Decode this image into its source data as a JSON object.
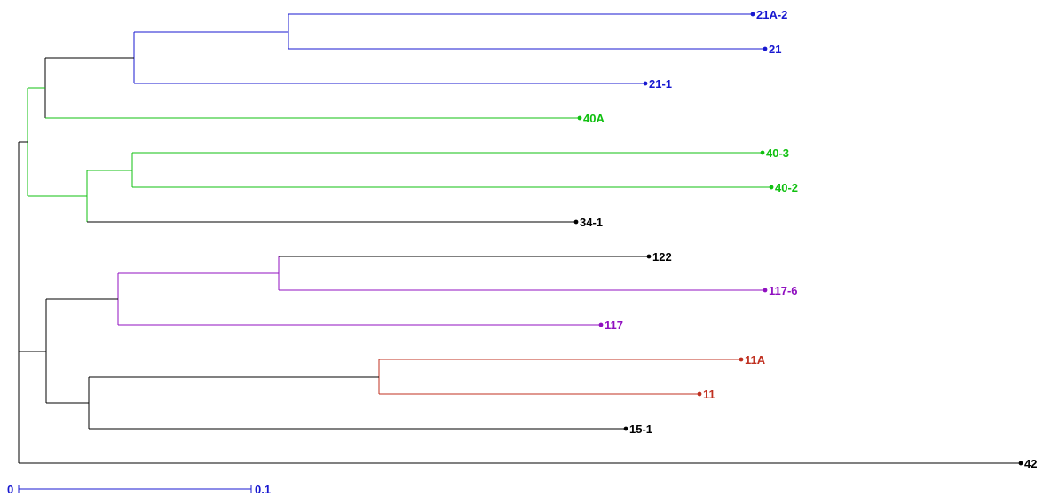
{
  "colors": {
    "blue": "#1818d0",
    "green": "#10c010",
    "purple": "#9010c0",
    "red": "#c03020",
    "black": "#000000",
    "scale": "#1818d0"
  },
  "leaves": [
    {
      "label": "21A-2",
      "color": "blue"
    },
    {
      "label": "21",
      "color": "blue"
    },
    {
      "label": "21-1",
      "color": "blue"
    },
    {
      "label": "40A",
      "color": "green"
    },
    {
      "label": "40-3",
      "color": "green"
    },
    {
      "label": "40-2",
      "color": "green"
    },
    {
      "label": "34-1",
      "color": "black"
    },
    {
      "label": "122",
      "color": "black"
    },
    {
      "label": "117-6",
      "color": "purple"
    },
    {
      "label": "117",
      "color": "purple"
    },
    {
      "label": "11A",
      "color": "red"
    },
    {
      "label": "11",
      "color": "red"
    },
    {
      "label": "15-1",
      "color": "black"
    },
    {
      "label": "42",
      "color": "black"
    }
  ],
  "scale_bar": {
    "start_label": "0",
    "end_label": "0.1"
  }
}
